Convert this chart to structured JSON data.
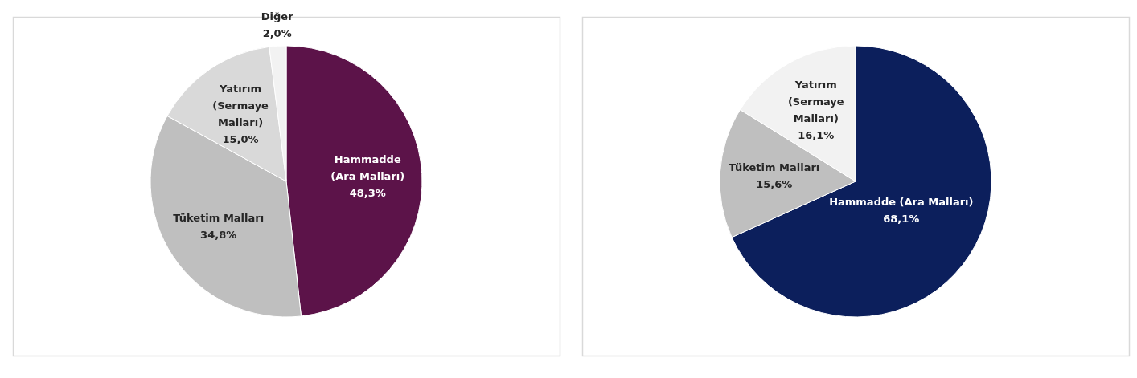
{
  "chart_data": [
    {
      "type": "pie",
      "categories": [
        "Hammadde (Ara Malları)",
        "Tüketim Malları",
        "Yatırım (Sermaye Malları)",
        "Diğer"
      ],
      "values": [
        48.3,
        34.8,
        15.0,
        2.0
      ],
      "colors": [
        "#5c1349",
        "#bfbfbf",
        "#d9d9d9",
        "#f2f2f2"
      ],
      "value_labels": [
        "48,3%",
        "34,8%",
        "15,0%",
        "2,0%"
      ],
      "legend": false
    },
    {
      "type": "pie",
      "categories": [
        "Hammadde (Ara Malları)",
        "Tüketim Malları",
        "Yatırım (Sermaye Malları)"
      ],
      "values": [
        68.1,
        15.6,
        16.1
      ],
      "colors": [
        "#0c1f5c",
        "#bfbfbf",
        "#f2f2f2"
      ],
      "value_labels": [
        "68,1%",
        "15,6%",
        "16,1%"
      ],
      "legend": false
    }
  ]
}
